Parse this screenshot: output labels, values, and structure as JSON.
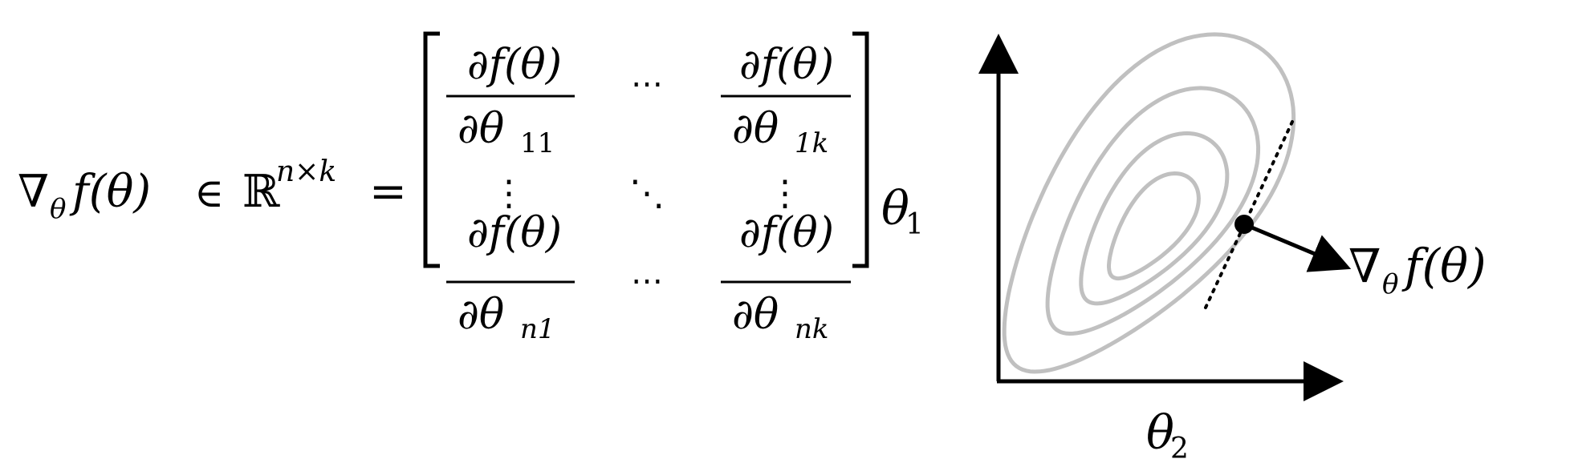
{
  "equation": {
    "lhs": {
      "nabla": "∇",
      "nabla_sub": "θ",
      "func": "f(θ)",
      "in_symbol": "∈",
      "reals": "ℝ",
      "exponent": "n×k",
      "equals": "="
    },
    "matrix": {
      "cells": [
        {
          "numerator": "∂f(θ)",
          "denominator": "∂θ",
          "subscript": "11"
        },
        {
          "numerator": "∂f(θ)",
          "denominator": "∂θ",
          "subscript": "1k"
        },
        {
          "numerator": "∂f(θ)",
          "denominator": "∂θ",
          "subscript": "n1"
        },
        {
          "numerator": "∂f(θ)",
          "denominator": "∂θ",
          "subscript": "nk"
        }
      ],
      "hdots": "⋯",
      "vdots": "⋮",
      "ddots": "⋱"
    }
  },
  "diagram": {
    "y_axis_label": "θ",
    "y_axis_label_sub": "1",
    "x_axis_label": "θ",
    "x_axis_label_sub": "2",
    "gradient_label": {
      "nabla": "∇",
      "sub": "θ",
      "func": "f(θ)"
    },
    "contour_color": "#c0c0c0",
    "contour_count": 4
  }
}
